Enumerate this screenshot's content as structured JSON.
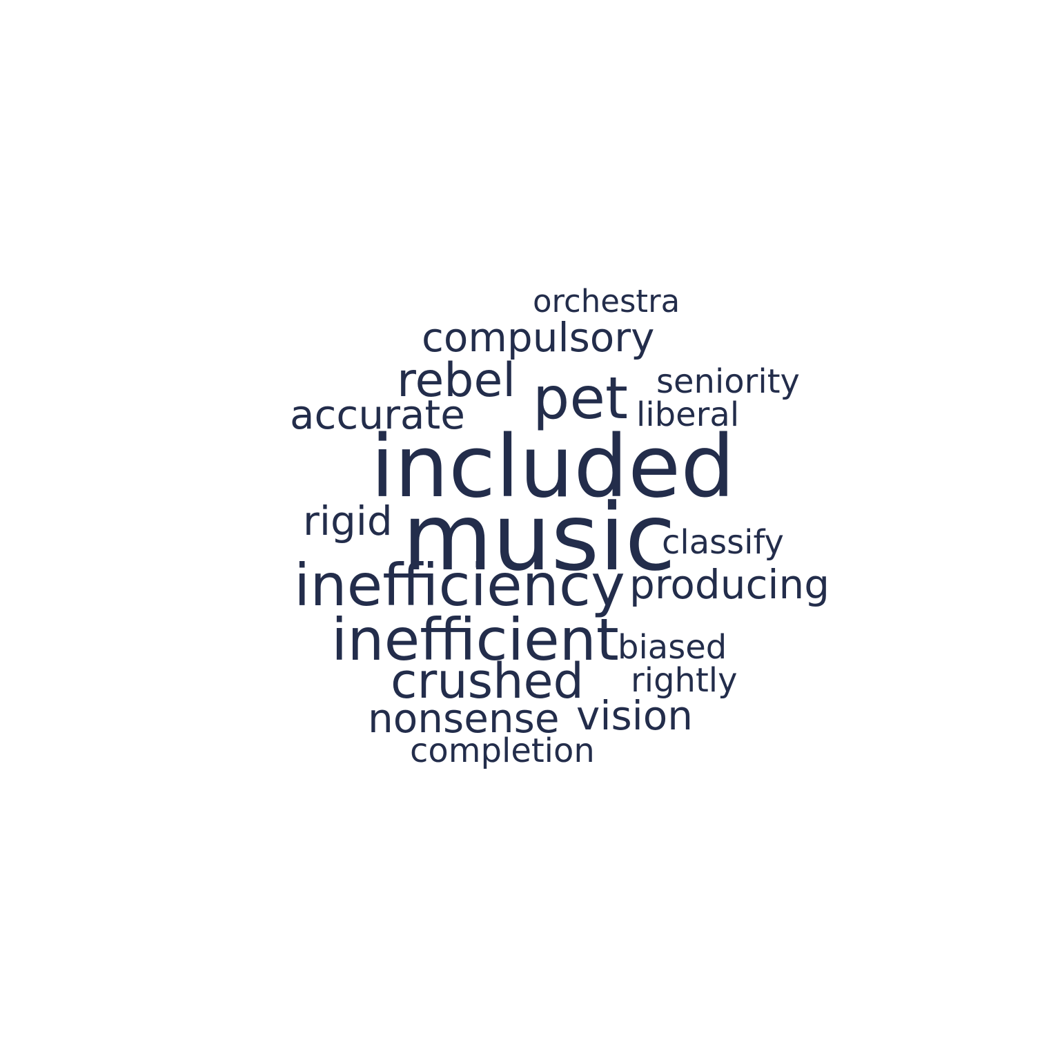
{
  "word_cloud": {
    "color": "#232d4b",
    "words": [
      "orchestra",
      "compulsory",
      "rebel",
      "pet",
      "seniority",
      "accurate",
      "liberal",
      "included",
      "rigid",
      "music",
      "classify",
      "inefficiency",
      "producing",
      "inefficient",
      "biased",
      "crushed",
      "rightly",
      "nonsense",
      "vision",
      "completion"
    ]
  }
}
